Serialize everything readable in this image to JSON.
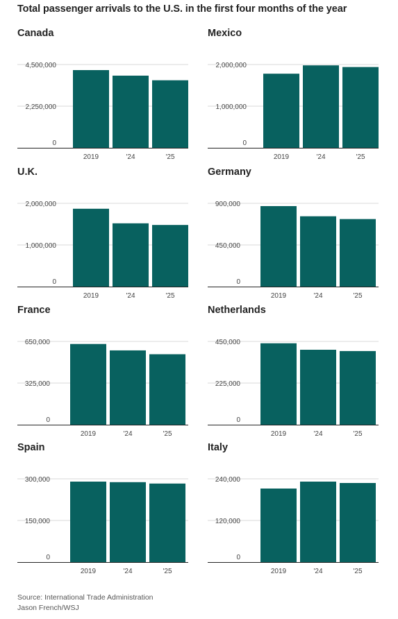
{
  "title": "Total passenger arrivals to the U.S. in the first four months of the year",
  "footer": {
    "source": "Source: International Trade Administration",
    "credit": "Jason French/WSJ"
  },
  "colors": {
    "bar": "#08615f",
    "grid": "#d8d8d8",
    "axis": "#222222"
  },
  "chart_data": [
    {
      "type": "bar",
      "title": "Canada",
      "categories": [
        "2019",
        "'24",
        "'25"
      ],
      "values": [
        4200000,
        3900000,
        3650000
      ],
      "ylim": [
        0,
        4500000
      ],
      "ticks": [
        0,
        2250000,
        4500000
      ],
      "tick_labels": [
        "0",
        "2,250,000",
        "4,500,000"
      ]
    },
    {
      "type": "bar",
      "title": "Mexico",
      "categories": [
        "2019",
        "'24",
        "'25"
      ],
      "values": [
        1780000,
        1980000,
        1940000
      ],
      "ylim": [
        0,
        2000000
      ],
      "ticks": [
        0,
        1000000,
        2000000
      ],
      "tick_labels": [
        "0",
        "1,000,000",
        "2,000,000"
      ]
    },
    {
      "type": "bar",
      "title": "U.K.",
      "categories": [
        "2019",
        "'24",
        "'25"
      ],
      "values": [
        1870000,
        1520000,
        1480000
      ],
      "ylim": [
        0,
        2000000
      ],
      "ticks": [
        0,
        1000000,
        2000000
      ],
      "tick_labels": [
        "0",
        "1,000,000",
        "2,000,000"
      ]
    },
    {
      "type": "bar",
      "title": "Germany",
      "categories": [
        "2019",
        "'24",
        "'25"
      ],
      "values": [
        870000,
        760000,
        730000
      ],
      "ylim": [
        0,
        900000
      ],
      "ticks": [
        0,
        450000,
        900000
      ],
      "tick_labels": [
        "0",
        "450,000",
        "900,000"
      ]
    },
    {
      "type": "bar",
      "title": "France",
      "categories": [
        "2019",
        "'24",
        "'25"
      ],
      "values": [
        630000,
        580000,
        550000
      ],
      "ylim": [
        0,
        650000
      ],
      "ticks": [
        0,
        325000,
        650000
      ],
      "tick_labels": [
        "0",
        "325,000",
        "650,000"
      ]
    },
    {
      "type": "bar",
      "title": "Netherlands",
      "categories": [
        "2019",
        "'24",
        "'25"
      ],
      "values": [
        440000,
        405000,
        398000
      ],
      "ylim": [
        0,
        450000
      ],
      "ticks": [
        0,
        225000,
        450000
      ],
      "tick_labels": [
        "0",
        "225,000",
        "450,000"
      ]
    },
    {
      "type": "bar",
      "title": "Spain",
      "categories": [
        "2019",
        "'24",
        "'25"
      ],
      "values": [
        290000,
        288000,
        283000
      ],
      "ylim": [
        0,
        300000
      ],
      "ticks": [
        0,
        150000,
        300000
      ],
      "tick_labels": [
        "0",
        "150,000",
        "300,000"
      ]
    },
    {
      "type": "bar",
      "title": "Italy",
      "categories": [
        "2019",
        "'24",
        "'25"
      ],
      "values": [
        212000,
        232000,
        228000
      ],
      "ylim": [
        0,
        240000
      ],
      "ticks": [
        0,
        120000,
        240000
      ],
      "tick_labels": [
        "0",
        "120,000",
        "240,000"
      ]
    }
  ]
}
